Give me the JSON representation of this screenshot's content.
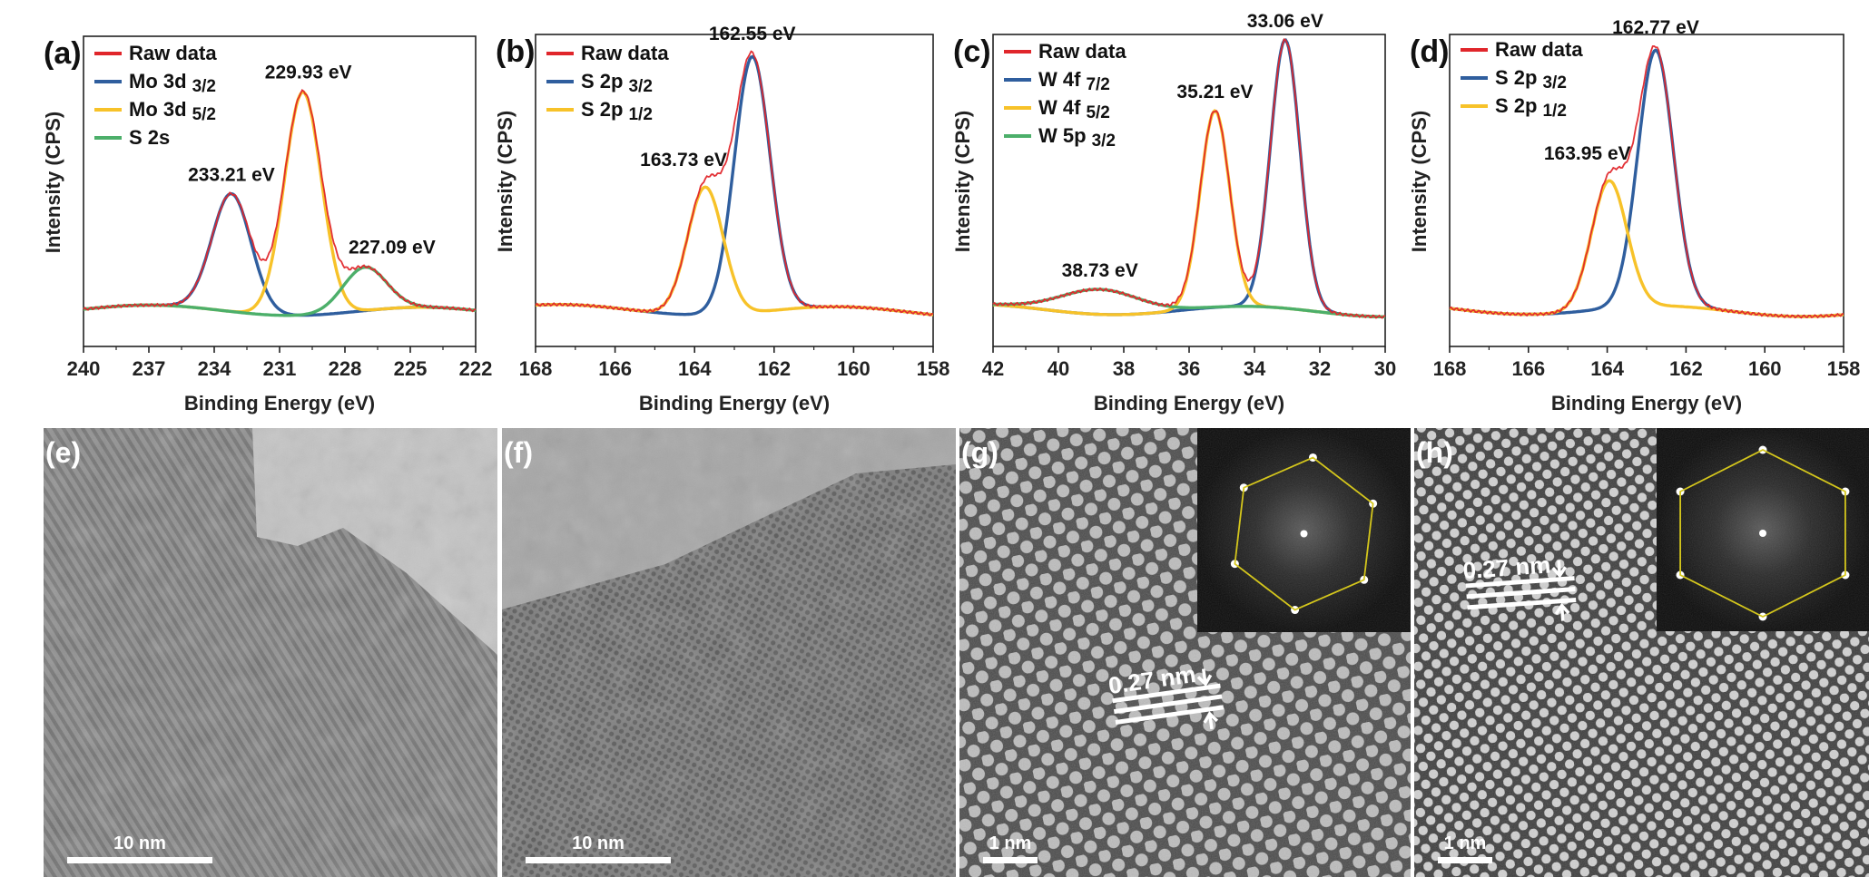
{
  "chart_data": [
    {
      "panel": "(a)",
      "type": "line",
      "xlabel": "Binding Energy (eV)",
      "ylabel": "Intensity (CPS)",
      "xlim": [
        240,
        222
      ],
      "x_reversed": true,
      "xticks": [
        240,
        237,
        234,
        231,
        228,
        225,
        222
      ],
      "yticks_shown": false,
      "legend_position": "top-left",
      "series": [
        {
          "name": "Raw data",
          "color": "#e0262b"
        },
        {
          "name": "Mo 3d",
          "sub": "3/2",
          "color": "#2f5e9e"
        },
        {
          "name": "Mo 3d",
          "sub": "5/2",
          "color": "#f7c229"
        },
        {
          "name": "S 2s",
          "color": "#4caf6a"
        }
      ],
      "peaks": [
        {
          "series": 1,
          "position": 233.21,
          "height": 0.38,
          "width": 0.9
        },
        {
          "series": 2,
          "position": 229.93,
          "height": 0.72,
          "width": 0.85
        },
        {
          "series": 3,
          "position": 227.09,
          "height": 0.14,
          "width": 1.0
        }
      ],
      "annotations": [
        {
          "text": "233.21 eV",
          "x": 233.21
        },
        {
          "text": "229.93 eV",
          "x": 229.93
        },
        {
          "text": "227.09 eV",
          "x": 227.09
        }
      ]
    },
    {
      "panel": "(b)",
      "type": "line",
      "xlabel": "Binding Energy (eV)",
      "ylabel": "Intensity (CPS)",
      "xlim": [
        168,
        158
      ],
      "x_reversed": true,
      "xticks": [
        168,
        166,
        164,
        162,
        160,
        158
      ],
      "yticks_shown": false,
      "legend_position": "top-left",
      "series": [
        {
          "name": "Raw data",
          "color": "#e0262b"
        },
        {
          "name": "S 2p",
          "sub": "3/2",
          "color": "#2f5e9e"
        },
        {
          "name": "S 2p",
          "sub": "1/2",
          "color": "#f7c229"
        }
      ],
      "peaks": [
        {
          "series": 1,
          "position": 162.55,
          "height": 0.82,
          "width": 0.45
        },
        {
          "series": 2,
          "position": 163.73,
          "height": 0.41,
          "width": 0.45
        }
      ],
      "annotations": [
        {
          "text": "162.55 eV",
          "x": 162.55
        },
        {
          "text": "163.73 eV",
          "x": 163.73
        }
      ]
    },
    {
      "panel": "(c)",
      "type": "line",
      "xlabel": "Binding Energy (eV)",
      "ylabel": "Intensity (CPS)",
      "xlim": [
        42,
        30
      ],
      "x_reversed": true,
      "xticks": [
        42,
        40,
        38,
        36,
        34,
        32,
        30
      ],
      "yticks_shown": false,
      "legend_position": "top-left",
      "series": [
        {
          "name": "Raw data",
          "color": "#e0262b"
        },
        {
          "name": "W 4f",
          "sub": "7/2",
          "color": "#2f5e9e"
        },
        {
          "name": "W 4f",
          "sub": "5/2",
          "color": "#f7c229"
        },
        {
          "name": "W 5p",
          "sub": "3/2",
          "color": "#4caf6a"
        }
      ],
      "peaks": [
        {
          "series": 1,
          "position": 33.06,
          "height": 0.86,
          "width": 0.45
        },
        {
          "series": 2,
          "position": 35.21,
          "height": 0.63,
          "width": 0.45
        },
        {
          "series": 3,
          "position": 38.73,
          "height": 0.08,
          "width": 1.2
        }
      ],
      "annotations": [
        {
          "text": "33.06 eV",
          "x": 33.06
        },
        {
          "text": "35.21 eV",
          "x": 35.21
        },
        {
          "text": "38.73 eV",
          "x": 38.73
        }
      ]
    },
    {
      "panel": "(d)",
      "type": "line",
      "xlabel": "Binding Energy (eV)",
      "ylabel": "Intensity (CPS)",
      "xlim": [
        168,
        158
      ],
      "x_reversed": true,
      "xticks": [
        168,
        166,
        164,
        162,
        160,
        158
      ],
      "yticks_shown": false,
      "legend_position": "top-left",
      "series": [
        {
          "name": "Raw data",
          "color": "#e0262b"
        },
        {
          "name": "S 2p",
          "sub": "3/2",
          "color": "#2f5e9e"
        },
        {
          "name": "S 2p",
          "sub": "1/2",
          "color": "#f7c229"
        }
      ],
      "peaks": [
        {
          "series": 1,
          "position": 162.77,
          "height": 0.82,
          "width": 0.45
        },
        {
          "series": 2,
          "position": 163.95,
          "height": 0.41,
          "width": 0.45
        }
      ],
      "annotations": [
        {
          "text": "162.77 eV",
          "x": 162.77
        },
        {
          "text": "163.95 eV",
          "x": 163.95
        }
      ]
    }
  ],
  "micrographs": [
    {
      "panel": "(e)",
      "scale_bar": "10 nm"
    },
    {
      "panel": "(f)",
      "scale_bar": "10 nm"
    },
    {
      "panel": "(g)",
      "scale_bar": "1 nm",
      "d_spacing": "0.27 nm",
      "fft_inset": true
    },
    {
      "panel": "(h)",
      "scale_bar": "1 nm",
      "d_spacing": "0.27 nm",
      "fft_inset": true
    }
  ]
}
